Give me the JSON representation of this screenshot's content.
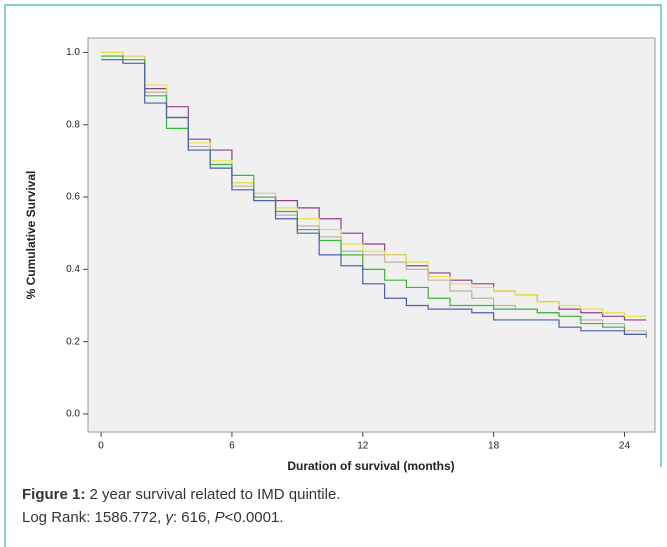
{
  "chart_data": {
    "type": "step",
    "x_label": "Duration of survival (months)",
    "y_label": "% Cumulative Survival",
    "caption_lead": "Figure 1:",
    "caption_text": "2 year survival related to IMD quintile.",
    "caption_line2_a": "Log Rank: 1586.772, ",
    "caption_line2_gamma": "γ",
    "caption_line2_b": ": 616, ",
    "caption_line2_p": "P",
    "caption_line2_c": "<0.0001.",
    "x": [
      0,
      1,
      2,
      3,
      4,
      5,
      6,
      7,
      8,
      9,
      10,
      11,
      12,
      13,
      14,
      15,
      16,
      17,
      18,
      19,
      20,
      21,
      22,
      23,
      24,
      25
    ],
    "series": [
      {
        "color": "#8e3f8e",
        "values": [
          1,
          0.99,
          0.9,
          0.85,
          0.76,
          0.73,
          0.64,
          0.61,
          0.59,
          0.57,
          0.54,
          0.5,
          0.47,
          0.44,
          0.41,
          0.39,
          0.37,
          0.36,
          0.34,
          0.33,
          0.31,
          0.29,
          0.28,
          0.27,
          0.26,
          0.26
        ]
      },
      {
        "color": "#e6e24a",
        "values": [
          1,
          0.99,
          0.91,
          0.82,
          0.75,
          0.7,
          0.64,
          0.61,
          0.57,
          0.54,
          0.51,
          0.47,
          0.45,
          0.44,
          0.42,
          0.38,
          0.36,
          0.35,
          0.34,
          0.33,
          0.31,
          0.3,
          0.29,
          0.28,
          0.27,
          0.27
        ]
      },
      {
        "color": "#bdb3a0",
        "values": [
          0.99,
          0.98,
          0.89,
          0.82,
          0.74,
          0.69,
          0.63,
          0.6,
          0.55,
          0.52,
          0.49,
          0.45,
          0.44,
          0.42,
          0.4,
          0.37,
          0.34,
          0.32,
          0.3,
          0.29,
          0.28,
          0.27,
          0.26,
          0.25,
          0.23,
          0.22
        ]
      },
      {
        "color": "#3cb43c",
        "values": [
          0.99,
          0.98,
          0.88,
          0.79,
          0.73,
          0.69,
          0.66,
          0.6,
          0.56,
          0.51,
          0.48,
          0.44,
          0.4,
          0.37,
          0.35,
          0.32,
          0.3,
          0.3,
          0.29,
          0.29,
          0.28,
          0.27,
          0.25,
          0.24,
          0.22,
          0.21
        ]
      },
      {
        "color": "#4a5fb0",
        "values": [
          0.98,
          0.97,
          0.86,
          0.82,
          0.73,
          0.68,
          0.62,
          0.59,
          0.54,
          0.5,
          0.44,
          0.41,
          0.36,
          0.32,
          0.3,
          0.29,
          0.29,
          0.28,
          0.26,
          0.26,
          0.26,
          0.24,
          0.23,
          0.23,
          0.22,
          0.22
        ]
      }
    ],
    "xlim": [
      -0.6,
      25.4
    ],
    "xticks": [
      0,
      6,
      12,
      18,
      24
    ],
    "ylim": [
      -0.05,
      1.04
    ],
    "yticks": [
      {
        "value": 0,
        "label": "0.0"
      },
      0.2,
      0.4,
      0.6,
      0.8,
      {
        "value": 1,
        "label": "1.0"
      }
    ],
    "background": "#f0f0f0"
  }
}
